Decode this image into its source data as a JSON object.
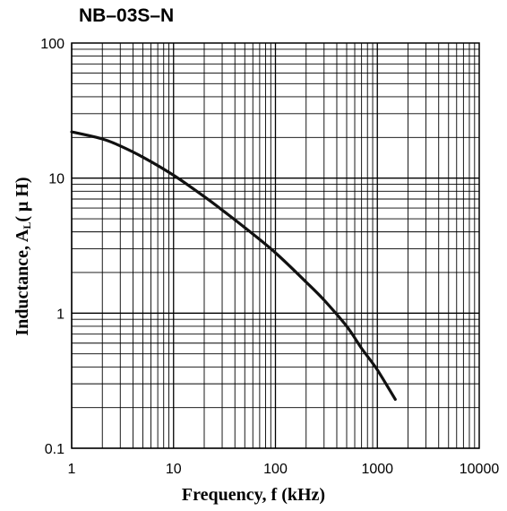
{
  "chart_data": {
    "type": "line",
    "title": "NB–03S–N",
    "xlabel": "Frequency, f (kHz)",
    "ylabel_prefix": "Inductance, A",
    "ylabel_sub": "L",
    "ylabel_suffix": "( μ H)",
    "x_scale": "log",
    "y_scale": "log",
    "xlim": [
      1,
      10000
    ],
    "ylim": [
      0.1,
      100
    ],
    "x_ticks": [
      "1",
      "10",
      "100",
      "1000",
      "10000"
    ],
    "y_ticks": [
      "0.1",
      "1",
      "10",
      "100"
    ],
    "grid": true,
    "line_color": "#111111",
    "series": [
      {
        "x": [
          1,
          2,
          3,
          5,
          10,
          20,
          30,
          50,
          100,
          200,
          300,
          500,
          700,
          1000,
          1500
        ],
        "y": [
          22,
          19.5,
          17.3,
          14.3,
          10.5,
          7.3,
          5.8,
          4.3,
          2.8,
          1.7,
          1.25,
          0.8,
          0.55,
          0.38,
          0.23
        ]
      }
    ]
  }
}
